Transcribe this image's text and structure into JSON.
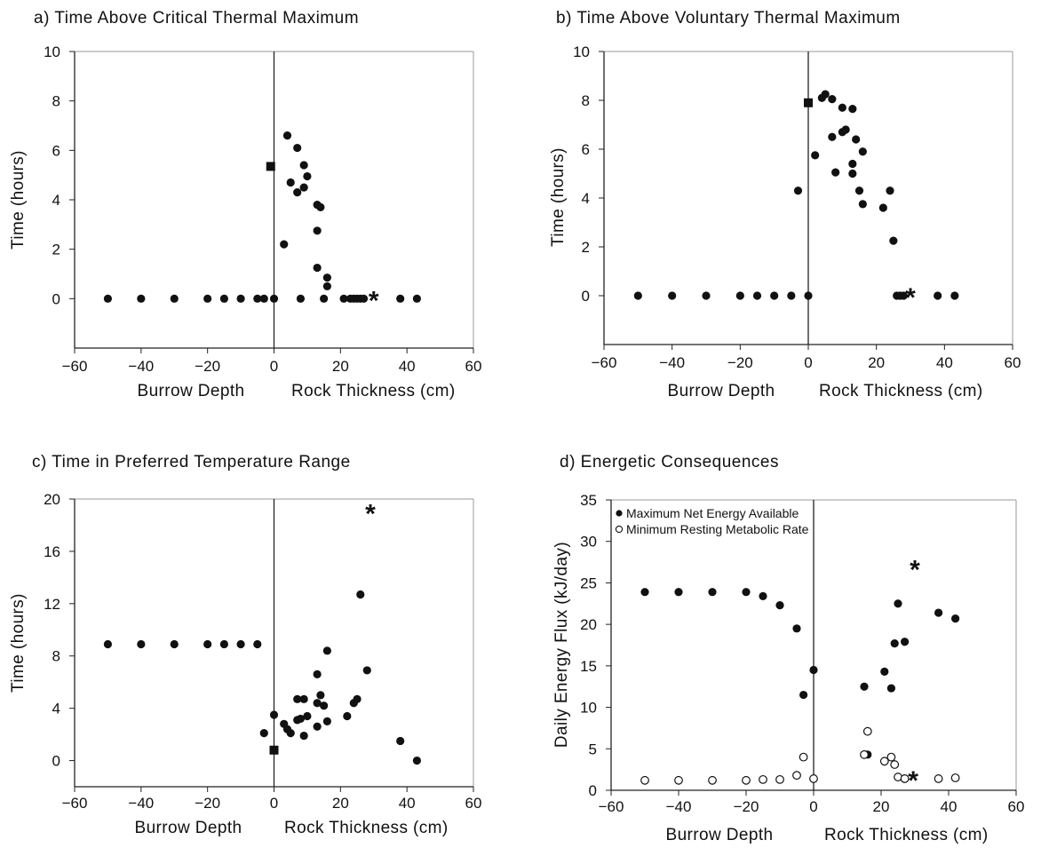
{
  "chart_data": [
    {
      "type": "scatter",
      "panel": "a)",
      "title": "Time Above Critical Thermal Maximum",
      "ylabel": "Time (hours)",
      "xlabel_left": "Burrow Depth",
      "xlabel_right": "Rock Thickness (cm)",
      "xlim": [
        -60,
        60
      ],
      "ylim": [
        -2,
        10
      ],
      "xticks": [
        -60,
        -40,
        -20,
        0,
        20,
        40,
        60
      ],
      "yticks": [
        0,
        2,
        4,
        6,
        8,
        10
      ],
      "series": [
        {
          "marker": "filled-circle",
          "points": [
            [
              -50,
              0
            ],
            [
              -40,
              0
            ],
            [
              -30,
              0
            ],
            [
              -20,
              0
            ],
            [
              -15,
              0
            ],
            [
              -10,
              0
            ],
            [
              -5,
              0
            ],
            [
              -3,
              0
            ],
            [
              0,
              0
            ],
            [
              3,
              2.2
            ],
            [
              4,
              6.6
            ],
            [
              5,
              4.7
            ],
            [
              7,
              4.3
            ],
            [
              7,
              6.1
            ],
            [
              9,
              4.5
            ],
            [
              9,
              5.4
            ],
            [
              10,
              4.95
            ],
            [
              13,
              3.8
            ],
            [
              13,
              2.75
            ],
            [
              13,
              1.25
            ],
            [
              14,
              3.7
            ],
            [
              15,
              0
            ],
            [
              16,
              0.5
            ],
            [
              16,
              0.85
            ],
            [
              8,
              0
            ],
            [
              21,
              0
            ],
            [
              23,
              0
            ],
            [
              24,
              0
            ],
            [
              25,
              0
            ],
            [
              26,
              0
            ],
            [
              27,
              0
            ],
            [
              38,
              0
            ],
            [
              43,
              0
            ]
          ]
        },
        {
          "marker": "filled-square",
          "points": [
            [
              -1,
              5.35
            ]
          ]
        },
        {
          "marker": "star",
          "points": [
            [
              30,
              0
            ]
          ]
        }
      ]
    },
    {
      "type": "scatter",
      "panel": "b)",
      "title": "Time Above Voluntary Thermal Maximum",
      "ylabel": "Time (hours)",
      "xlabel_left": "Burrow Depth",
      "xlabel_right": "Rock Thickness (cm)",
      "xlim": [
        -60,
        60
      ],
      "ylim": [
        -2,
        10
      ],
      "xticks": [
        -60,
        -40,
        -20,
        0,
        20,
        40,
        60
      ],
      "yticks": [
        0,
        2,
        4,
        6,
        8,
        10
      ],
      "series": [
        {
          "marker": "filled-circle",
          "points": [
            [
              -50,
              0
            ],
            [
              -40,
              0
            ],
            [
              -30,
              0
            ],
            [
              -20,
              0
            ],
            [
              -15,
              0
            ],
            [
              -10,
              0
            ],
            [
              -5,
              0
            ],
            [
              0,
              0
            ],
            [
              -3,
              4.3
            ],
            [
              2,
              5.75
            ],
            [
              4,
              8.1
            ],
            [
              5,
              8.25
            ],
            [
              7,
              8.05
            ],
            [
              7,
              6.5
            ],
            [
              8,
              5.05
            ],
            [
              10,
              6.7
            ],
            [
              11,
              6.8
            ],
            [
              10,
              7.7
            ],
            [
              13,
              7.65
            ],
            [
              13,
              5.4
            ],
            [
              13,
              5.0
            ],
            [
              14,
              6.4
            ],
            [
              15,
              4.3
            ],
            [
              16,
              5.9
            ],
            [
              16,
              3.75
            ],
            [
              22,
              3.6
            ],
            [
              24,
              4.3
            ],
            [
              25,
              2.25
            ],
            [
              26,
              0
            ],
            [
              27,
              0
            ],
            [
              28,
              0
            ],
            [
              38,
              0
            ],
            [
              43,
              0
            ]
          ]
        },
        {
          "marker": "filled-square",
          "points": [
            [
              0,
              7.9
            ]
          ]
        },
        {
          "marker": "star",
          "points": [
            [
              30,
              0
            ]
          ]
        }
      ]
    },
    {
      "type": "scatter",
      "panel": "c)",
      "title": "Time in Preferred Temperature Range",
      "ylabel": "Time (hours)",
      "xlabel_left": "Burrow Depth",
      "xlabel_right": "Rock Thickness (cm)",
      "xlim": [
        -60,
        60
      ],
      "ylim": [
        -2,
        20
      ],
      "xticks": [
        -60,
        -40,
        -20,
        0,
        20,
        40,
        60
      ],
      "yticks": [
        0,
        4,
        8,
        12,
        16,
        20
      ],
      "series": [
        {
          "marker": "filled-circle",
          "points": [
            [
              -50,
              8.9
            ],
            [
              -40,
              8.9
            ],
            [
              -30,
              8.9
            ],
            [
              -20,
              8.9
            ],
            [
              -15,
              8.9
            ],
            [
              -10,
              8.9
            ],
            [
              -5,
              8.9
            ],
            [
              -3,
              2.1
            ],
            [
              0,
              3.5
            ],
            [
              3,
              2.8
            ],
            [
              4,
              2.4
            ],
            [
              5,
              2.1
            ],
            [
              7,
              3.1
            ],
            [
              7,
              4.7
            ],
            [
              8,
              3.2
            ],
            [
              9,
              4.7
            ],
            [
              9,
              1.9
            ],
            [
              10,
              3.4
            ],
            [
              13,
              4.4
            ],
            [
              13,
              6.6
            ],
            [
              13,
              2.6
            ],
            [
              14,
              5.0
            ],
            [
              15,
              4.2
            ],
            [
              16,
              3.0
            ],
            [
              16,
              8.4
            ],
            [
              22,
              3.4
            ],
            [
              24,
              4.4
            ],
            [
              25,
              4.7
            ],
            [
              26,
              12.7
            ],
            [
              28,
              6.9
            ],
            [
              38,
              1.5
            ],
            [
              43,
              0.0
            ]
          ]
        },
        {
          "marker": "filled-square",
          "points": [
            [
              0,
              0.8
            ]
          ]
        },
        {
          "marker": "star",
          "points": [
            [
              29,
              19
            ]
          ]
        }
      ]
    },
    {
      "type": "scatter",
      "panel": "d)",
      "title": "Energetic Consequences",
      "ylabel": "Daily Energy Flux (kJ/day)",
      "xlabel_left": "Burrow Depth",
      "xlabel_right": "Rock Thickness (cm)",
      "xlim": [
        -60,
        60
      ],
      "ylim": [
        0,
        35
      ],
      "xticks": [
        -60,
        -40,
        -20,
        0,
        20,
        40,
        60
      ],
      "yticks": [
        0,
        5,
        10,
        15,
        20,
        25,
        30,
        35
      ],
      "legend": [
        "Maximum Net Energy Available",
        "Minimum Resting Metabolic Rate"
      ],
      "legend_placement": "top-left",
      "series": [
        {
          "name": "Maximum Net Energy Available",
          "marker": "filled-circle",
          "points": [
            [
              -50,
              23.9
            ],
            [
              -40,
              23.9
            ],
            [
              -30,
              23.9
            ],
            [
              -20,
              23.9
            ],
            [
              -15,
              23.4
            ],
            [
              -10,
              22.3
            ],
            [
              -5,
              19.5
            ],
            [
              -3,
              11.5
            ],
            [
              0,
              14.5
            ],
            [
              15,
              12.5
            ],
            [
              16,
              4.3
            ],
            [
              21,
              14.3
            ],
            [
              23,
              12.3
            ],
            [
              24,
              17.7
            ],
            [
              25,
              22.5
            ],
            [
              27,
              17.9
            ],
            [
              37,
              21.4
            ],
            [
              42,
              20.7
            ]
          ]
        },
        {
          "name": "Minimum Resting Metabolic Rate",
          "marker": "open-circle",
          "points": [
            [
              -50,
              1.2
            ],
            [
              -40,
              1.2
            ],
            [
              -30,
              1.2
            ],
            [
              -20,
              1.2
            ],
            [
              -15,
              1.3
            ],
            [
              -10,
              1.3
            ],
            [
              -5,
              1.8
            ],
            [
              -3,
              4.0
            ],
            [
              0,
              1.4
            ],
            [
              15,
              4.3
            ],
            [
              16,
              7.1
            ],
            [
              21,
              3.5
            ],
            [
              23,
              4.0
            ],
            [
              24,
              3.1
            ],
            [
              25,
              1.6
            ],
            [
              27,
              1.4
            ],
            [
              37,
              1.4
            ],
            [
              42,
              1.5
            ]
          ]
        },
        {
          "marker": "star",
          "points": [
            [
              30,
              26.8
            ],
            [
              29.5,
              1.4
            ]
          ]
        }
      ]
    }
  ]
}
